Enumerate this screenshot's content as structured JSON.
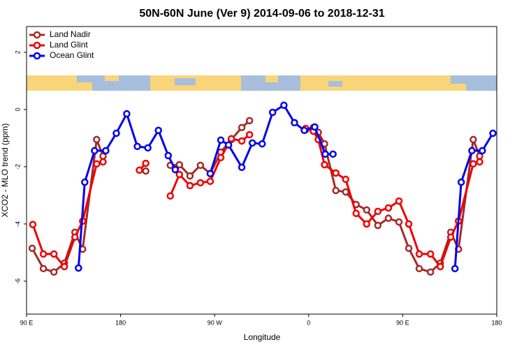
{
  "chart_data": {
    "type": "line",
    "title": "50N-60N June (Ver 9)   2014-09-06 to 2018-12-31",
    "x_label": "Longitude",
    "y_label": "XCO2 - MLO trend (ppm)",
    "xlim": [
      90,
      540
    ],
    "xticks": [
      {
        "value": 90,
        "label": "90 E"
      },
      {
        "value": 180,
        "label": "180"
      },
      {
        "value": 270,
        "label": "90 W"
      },
      {
        "value": 360,
        "label": "0"
      },
      {
        "value": 450,
        "label": "90 E"
      },
      {
        "value": 540,
        "label": "180"
      }
    ],
    "ylim": [
      -7.15,
      2.9
    ],
    "yticks": [
      -6,
      -4,
      -2,
      0,
      2
    ],
    "legend": "top-left",
    "series": [
      {
        "name": "Land Nadir",
        "color": "#a52a2a",
        "x": [
          95.4,
          106.1,
          116.2,
          126.2,
          136.3,
          143.7,
          157.1,
          163.2,
          null,
          204.1,
          null,
          227.6,
          236.3,
          246.4,
          256.4,
          265.8,
          275.9,
          286,
          296,
          303.4,
          null,
          357.1,
          364.5,
          369.2,
          375.2,
          386,
          395.4,
          405.4,
          415.5,
          426.2,
          436.3,
          446.4,
          455.8,
          465.8,
          476.6,
          486,
          496,
          503.4,
          517.5,
          523.6
        ],
        "values": [
          -4.85,
          -5.56,
          -5.68,
          -5.37,
          -4.29,
          -4.88,
          -1.05,
          -1.63,
          null,
          -2.15,
          null,
          -1.95,
          -1.93,
          -2.32,
          -1.95,
          -2.24,
          -1.49,
          -1.05,
          -0.63,
          -0.39,
          null,
          -0.71,
          -0.63,
          -0.8,
          -1.2,
          -2.83,
          -2.88,
          -3.32,
          -3.51,
          -4.05,
          -3.8,
          -3.93,
          -4.85,
          -5.56,
          -5.68,
          -5.37,
          -4.29,
          -4.88,
          -1.05,
          -1.63
        ]
      },
      {
        "name": "Land Glint",
        "color": "#ee0000",
        "x": [
          96,
          106.1,
          116.2,
          126.2,
          136.3,
          143.7,
          157.1,
          163.2,
          null,
          198,
          204.1,
          null,
          227.6,
          236.3,
          246.4,
          256.4,
          265.8,
          275.9,
          286,
          296,
          303.4,
          null,
          357.1,
          364.5,
          369.2,
          375.2,
          386,
          395.4,
          405.4,
          415.5,
          426.2,
          436.3,
          446.4,
          455.8,
          465.8,
          476.6,
          486,
          496,
          503.4,
          517.5,
          523.6
        ],
        "values": [
          -4.02,
          -5.05,
          -5.05,
          -5.49,
          -4.46,
          -3.9,
          -1.9,
          -1.83,
          null,
          -2.12,
          -1.88,
          null,
          -3.02,
          -2.27,
          -2.66,
          -2.56,
          -2.51,
          -1.68,
          -1.02,
          -1.1,
          -0.88,
          null,
          -0.66,
          -0.76,
          -1.05,
          -1.93,
          -2.22,
          -2.44,
          -3.63,
          -4.0,
          -3.56,
          -3.44,
          -3.2,
          -4.0,
          -5.05,
          -5.05,
          -5.49,
          -4.46,
          -3.9,
          -1.9,
          -1.83
        ]
      },
      {
        "name": "Ocean Glint",
        "color": "#0000ee",
        "x": [
          139.7,
          145.7,
          155.1,
          165.8,
          175.9,
          185.9,
          196,
          206.1,
          216.2,
          225.6,
          232.3,
          null,
          265.8,
          275.9,
          283.3,
          296,
          306.1,
          315.5,
          325.5,
          336.3,
          346.4,
          355.8,
          365.8,
          375.9,
          383.3,
          null,
          500,
          506,
          516.2,
          526.2,
          536.3
        ],
        "values": [
          -5.54,
          -2.54,
          -1.44,
          -1.44,
          -0.83,
          -0.15,
          -1.29,
          -1.34,
          -0.73,
          -1.61,
          -2.1,
          null,
          -2.24,
          -1.07,
          -1.24,
          -2.02,
          -1.17,
          -1.2,
          -0.1,
          0.15,
          -0.46,
          -0.73,
          -0.61,
          -1.56,
          -1.56,
          null,
          -5.56,
          -2.54,
          -1.44,
          -1.44,
          -0.83
        ]
      }
    ]
  }
}
